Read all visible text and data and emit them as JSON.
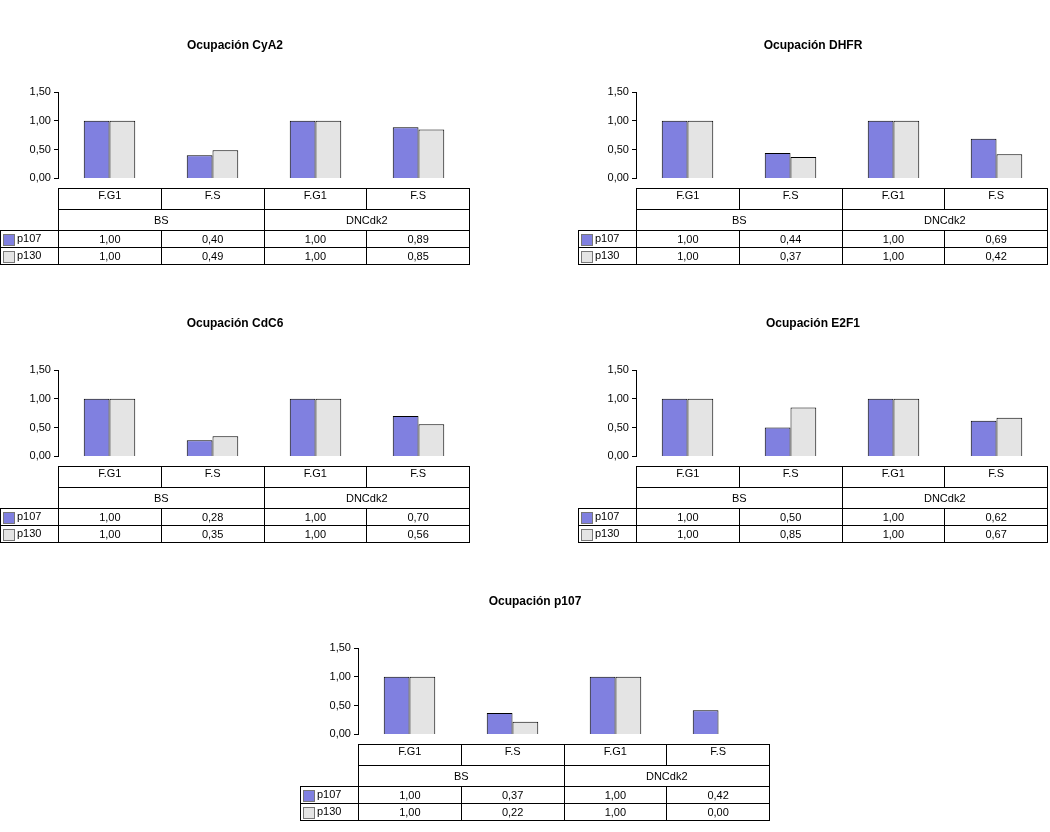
{
  "chart_data": [
    {
      "type": "bar",
      "title": "Ocupación CyA2",
      "categories": [
        "F.G1",
        "F.S",
        "F.G1",
        "F.S"
      ],
      "annotations": [
        "BS",
        "DNCdk2"
      ],
      "ylim": [
        0,
        1.5
      ],
      "yticks": [
        {
          "value": 0,
          "label": "0,00"
        },
        {
          "value": 0.5,
          "label": "0,50"
        },
        {
          "value": 1,
          "label": "1,00"
        },
        {
          "value": 1.5,
          "label": "1,50"
        }
      ],
      "grid": false,
      "legend": "bottom left",
      "series": [
        {
          "name": "p107",
          "color": "#8080e0",
          "values": [
            1.0,
            0.4,
            1.0,
            0.89
          ],
          "value_labels": [
            "1,00",
            "0,40",
            "1,00",
            "0,89"
          ]
        },
        {
          "name": "p130",
          "color": "#e4e4e4",
          "values": [
            1.0,
            0.49,
            1.0,
            0.85
          ],
          "value_labels": [
            "1,00",
            "0,49",
            "1,00",
            "0,85"
          ]
        }
      ]
    },
    {
      "type": "bar",
      "title": "Ocupación DHFR",
      "categories": [
        "F.G1",
        "F.S",
        "F.G1",
        "F.S"
      ],
      "annotations": [
        "BS",
        "DNCdk2"
      ],
      "ylim": [
        0,
        1.5
      ],
      "yticks": [
        {
          "value": 0,
          "label": "0,00"
        },
        {
          "value": 0.5,
          "label": "0,50"
        },
        {
          "value": 1,
          "label": "1,00"
        },
        {
          "value": 1.5,
          "label": "1,50"
        }
      ],
      "grid": false,
      "legend": "bottom left",
      "series": [
        {
          "name": "p107",
          "color": "#8080e0",
          "values": [
            1.0,
            0.44,
            1.0,
            0.69
          ],
          "value_labels": [
            "1,00",
            "0,44",
            "1,00",
            "0,69"
          ]
        },
        {
          "name": "p130",
          "color": "#e4e4e4",
          "values": [
            1.0,
            0.37,
            1.0,
            0.42
          ],
          "value_labels": [
            "1,00",
            "0,37",
            "1,00",
            "0,42"
          ]
        }
      ]
    },
    {
      "type": "bar",
      "title": "Ocupación CdC6",
      "categories": [
        "F.G1",
        "F.S",
        "F.G1",
        "F.S"
      ],
      "annotations": [
        "BS",
        "DNCdk2"
      ],
      "ylim": [
        0,
        1.5
      ],
      "yticks": [
        {
          "value": 0,
          "label": "0,00"
        },
        {
          "value": 0.5,
          "label": "0,50"
        },
        {
          "value": 1,
          "label": "1,00"
        },
        {
          "value": 1.5,
          "label": "1,50"
        }
      ],
      "grid": false,
      "legend": "bottom left",
      "series": [
        {
          "name": "p107",
          "color": "#8080e0",
          "values": [
            1.0,
            0.28,
            1.0,
            0.7
          ],
          "value_labels": [
            "1,00",
            "0,28",
            "1,00",
            "0,70"
          ]
        },
        {
          "name": "p130",
          "color": "#e4e4e4",
          "values": [
            1.0,
            0.35,
            1.0,
            0.56
          ],
          "value_labels": [
            "1,00",
            "0,35",
            "1,00",
            "0,56"
          ]
        }
      ]
    },
    {
      "type": "bar",
      "title": "Ocupación E2F1",
      "categories": [
        "F.G1",
        "F.S",
        "F.G1",
        "F.S"
      ],
      "annotations": [
        "BS",
        "DNCdk2"
      ],
      "ylim": [
        0,
        1.5
      ],
      "yticks": [
        {
          "value": 0,
          "label": "0,00"
        },
        {
          "value": 0.5,
          "label": "0,50"
        },
        {
          "value": 1,
          "label": "1,00"
        },
        {
          "value": 1.5,
          "label": "1,50"
        }
      ],
      "grid": false,
      "legend": "bottom left",
      "series": [
        {
          "name": "p107",
          "color": "#8080e0",
          "values": [
            1.0,
            0.5,
            1.0,
            0.62
          ],
          "value_labels": [
            "1,00",
            "0,50",
            "1,00",
            "0,62"
          ]
        },
        {
          "name": "p130",
          "color": "#e4e4e4",
          "values": [
            1.0,
            0.85,
            1.0,
            0.67
          ],
          "value_labels": [
            "1,00",
            "0,85",
            "1,00",
            "0,67"
          ]
        }
      ]
    },
    {
      "type": "bar",
      "title": "Ocupación p107",
      "categories": [
        "F.G1",
        "F.S",
        "F.G1",
        "F.S"
      ],
      "annotations": [
        "BS",
        "DNCdk2"
      ],
      "ylim": [
        0,
        1.5
      ],
      "yticks": [
        {
          "value": 0,
          "label": "0,00"
        },
        {
          "value": 0.5,
          "label": "0,50"
        },
        {
          "value": 1,
          "label": "1,00"
        },
        {
          "value": 1.5,
          "label": "1,50"
        }
      ],
      "grid": false,
      "legend": "bottom left",
      "series": [
        {
          "name": "p107",
          "color": "#8080e0",
          "values": [
            1.0,
            0.37,
            1.0,
            0.42
          ],
          "value_labels": [
            "1,00",
            "0,37",
            "1,00",
            "0,42"
          ]
        },
        {
          "name": "p130",
          "color": "#e4e4e4",
          "values": [
            1.0,
            0.22,
            1.0,
            0.0
          ],
          "value_labels": [
            "1,00",
            "0,22",
            "1,00",
            "0,00"
          ]
        }
      ]
    }
  ]
}
